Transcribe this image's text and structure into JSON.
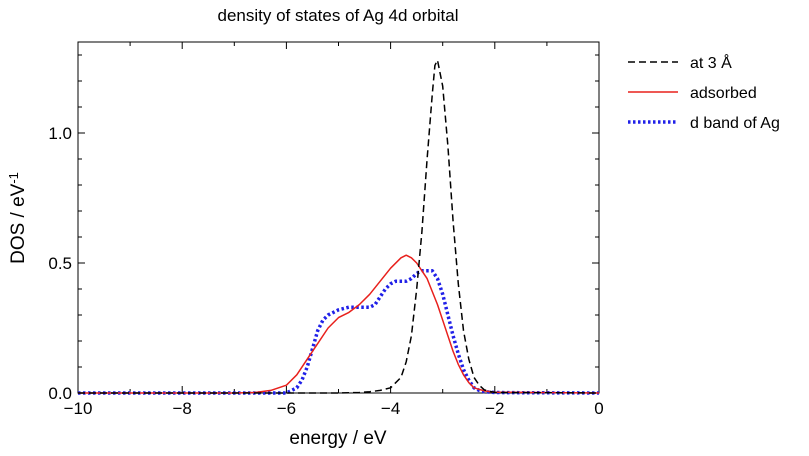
{
  "chart_data": {
    "type": "line",
    "title": "density of states of Ag 4d orbital",
    "xlabel": "energy / eV",
    "ylabel_main": "DOS / eV",
    "ylabel_sup": "-1",
    "xlim": [
      -10,
      0
    ],
    "ylim": [
      0,
      1.35
    ],
    "xticks": [
      -10,
      -8,
      -6,
      -4,
      -2,
      0
    ],
    "xtick_labels": [
      "−10",
      "−8",
      "−6",
      "−4",
      "−2",
      "0"
    ],
    "yticks": [
      0,
      0.5,
      1.0
    ],
    "ytick_labels": [
      "0.0",
      "0.5",
      "1.0"
    ],
    "grid": false,
    "legend_position": "right, outside top",
    "series": [
      {
        "name": "at 3 Å",
        "color": "#000000",
        "style": "dashed",
        "x": [
          -10,
          -5,
          -4.6,
          -4.4,
          -4.2,
          -4.0,
          -3.8,
          -3.7,
          -3.6,
          -3.5,
          -3.4,
          -3.3,
          -3.2,
          -3.15,
          -3.1,
          -3.0,
          -2.9,
          -2.8,
          -2.7,
          -2.6,
          -2.5,
          -2.4,
          -2.3,
          -2.2,
          -2.0,
          0
        ],
        "y": [
          0,
          0,
          0.002,
          0.005,
          0.01,
          0.02,
          0.06,
          0.12,
          0.22,
          0.4,
          0.62,
          0.9,
          1.15,
          1.26,
          1.28,
          1.18,
          0.95,
          0.66,
          0.42,
          0.24,
          0.13,
          0.06,
          0.03,
          0.012,
          0.002,
          0
        ]
      },
      {
        "name": "adsorbed",
        "color": "#e8201c",
        "style": "solid",
        "x": [
          -10,
          -7,
          -6.6,
          -6.3,
          -6.0,
          -5.8,
          -5.6,
          -5.4,
          -5.2,
          -5.0,
          -4.8,
          -4.6,
          -4.4,
          -4.2,
          -4.0,
          -3.8,
          -3.7,
          -3.6,
          -3.5,
          -3.4,
          -3.3,
          -3.2,
          -3.1,
          -3.0,
          -2.9,
          -2.8,
          -2.7,
          -2.6,
          -2.5,
          -2.4,
          -2.2,
          -2.0,
          0
        ],
        "y": [
          0,
          0,
          0.002,
          0.01,
          0.03,
          0.07,
          0.13,
          0.19,
          0.25,
          0.29,
          0.31,
          0.34,
          0.38,
          0.43,
          0.48,
          0.52,
          0.53,
          0.52,
          0.5,
          0.47,
          0.44,
          0.39,
          0.34,
          0.28,
          0.22,
          0.16,
          0.11,
          0.07,
          0.04,
          0.02,
          0.008,
          0.003,
          0
        ]
      },
      {
        "name": "d band of Ag",
        "color": "#2020e8",
        "style": "dotted",
        "x": [
          -10,
          -6.0,
          -5.8,
          -5.7,
          -5.6,
          -5.5,
          -5.4,
          -5.3,
          -5.2,
          -5.0,
          -4.8,
          -4.6,
          -4.4,
          -4.3,
          -4.2,
          -4.1,
          -4.0,
          -3.9,
          -3.8,
          -3.7,
          -3.6,
          -3.5,
          -3.4,
          -3.3,
          -3.2,
          -3.1,
          -3.0,
          -2.9,
          -2.8,
          -2.7,
          -2.6,
          -2.5,
          -2.4,
          -2.3,
          -2.2,
          -2.0,
          -1.5,
          0
        ],
        "y": [
          0,
          0,
          0.02,
          0.05,
          0.1,
          0.17,
          0.24,
          0.28,
          0.3,
          0.32,
          0.33,
          0.33,
          0.33,
          0.34,
          0.37,
          0.4,
          0.42,
          0.43,
          0.43,
          0.43,
          0.44,
          0.46,
          0.47,
          0.47,
          0.47,
          0.44,
          0.38,
          0.3,
          0.22,
          0.15,
          0.09,
          0.05,
          0.02,
          0.01,
          0.005,
          0.002,
          0.001,
          0
        ]
      }
    ]
  }
}
